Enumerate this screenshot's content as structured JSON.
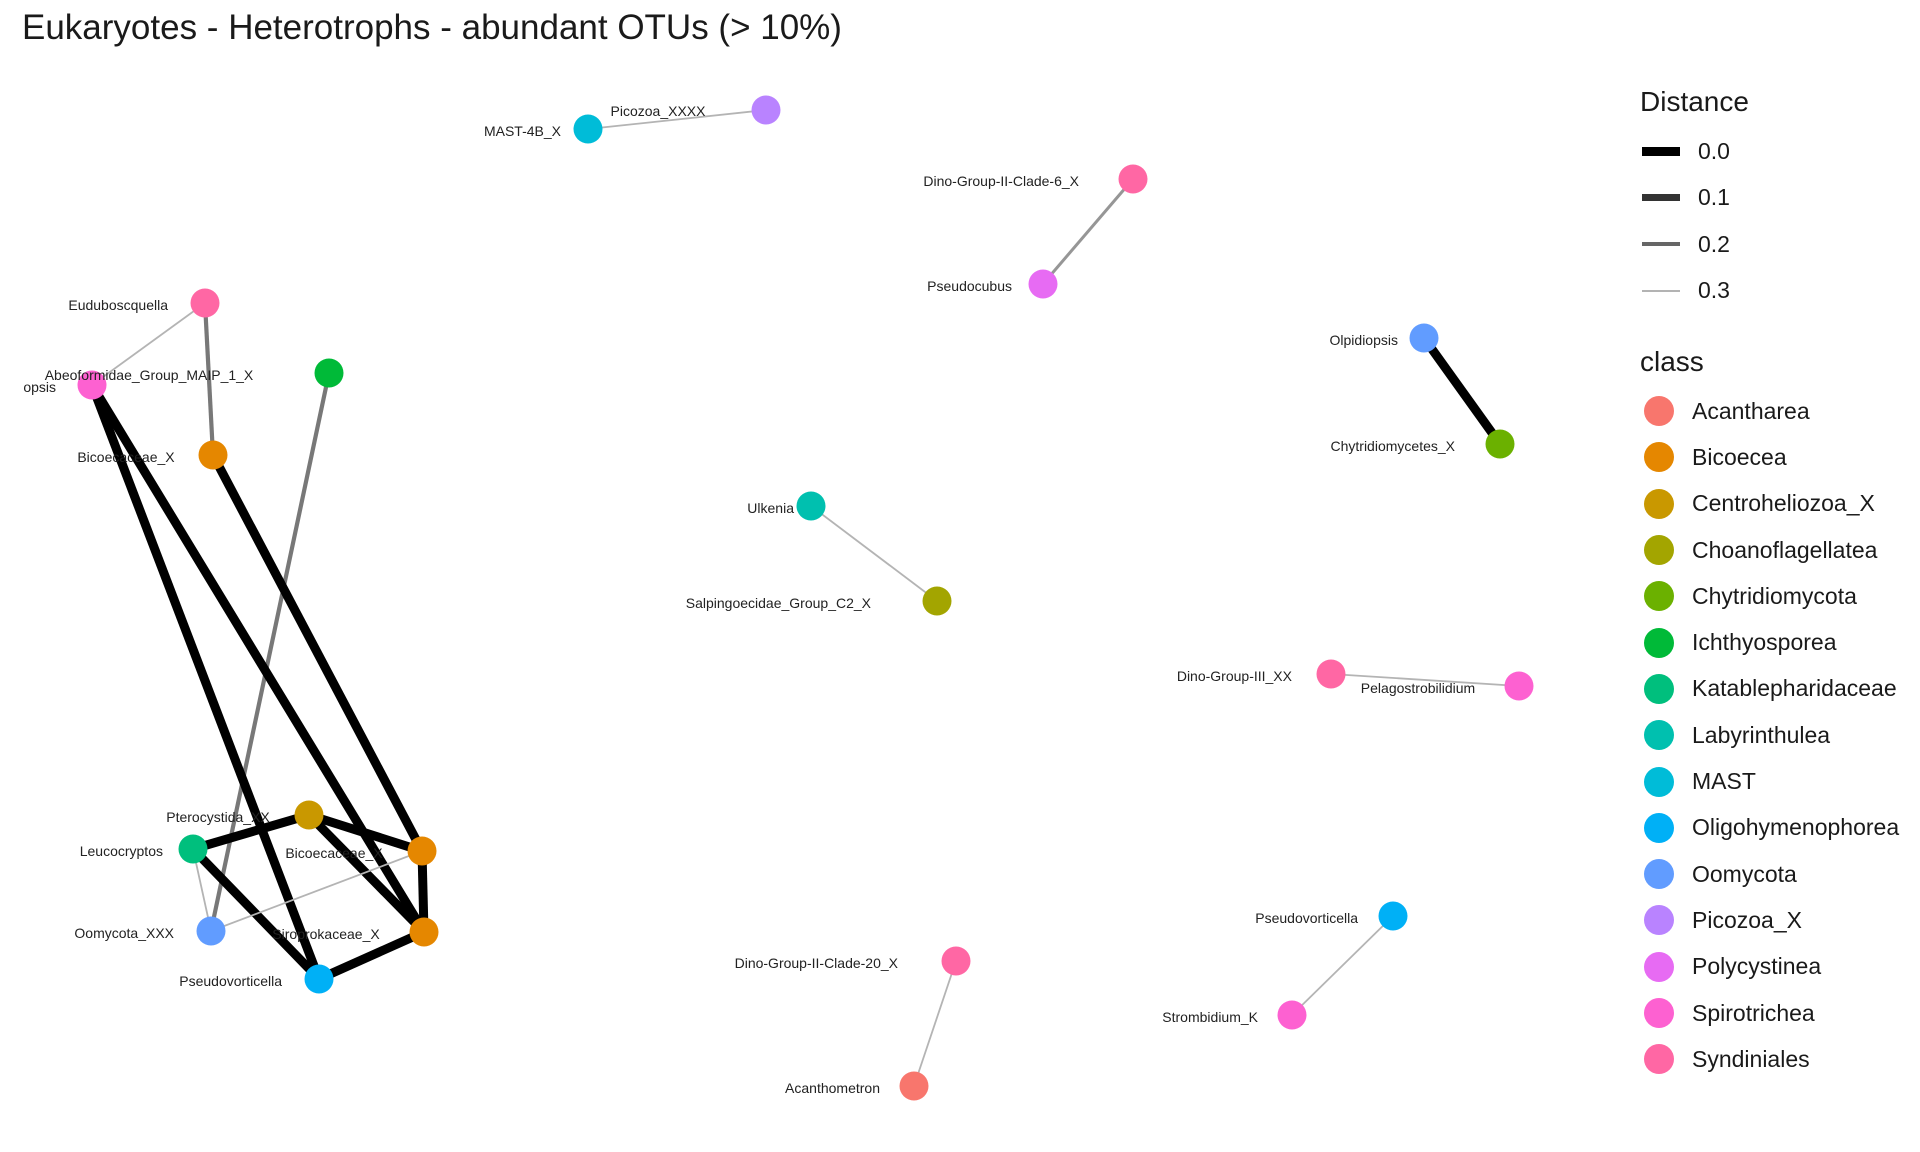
{
  "title": "Eukaryotes - Heterotrophs - abundant OTUs (> 10%)",
  "legend": {
    "distance_title": "Distance",
    "distance_items": [
      {
        "label": "0.0",
        "value": 0.0,
        "color": "#000000"
      },
      {
        "label": "0.1",
        "value": 0.1,
        "color": "#333333"
      },
      {
        "label": "0.2",
        "value": 0.2,
        "color": "#666666"
      },
      {
        "label": "0.3",
        "value": 0.3,
        "color": "#b3b3b3"
      }
    ],
    "class_title": "class",
    "classes": [
      {
        "name": "Acantharea",
        "color": "#F8766D"
      },
      {
        "name": "Bicoecea",
        "color": "#E58700"
      },
      {
        "name": "Centroheliozoa_X",
        "color": "#C99800"
      },
      {
        "name": "Choanoflagellatea",
        "color": "#A3A500"
      },
      {
        "name": "Chytridiomycota",
        "color": "#6BB100"
      },
      {
        "name": "Ichthyosporea",
        "color": "#00BA38"
      },
      {
        "name": "Katablepharidaceae",
        "color": "#00BF7D"
      },
      {
        "name": "Labyrinthulea",
        "color": "#00C0AF"
      },
      {
        "name": "MAST",
        "color": "#00BCD8"
      },
      {
        "name": "Oligohymenophorea",
        "color": "#00B0F6"
      },
      {
        "name": "Oomycota",
        "color": "#619CFF"
      },
      {
        "name": "Picozoa_X",
        "color": "#B983FF"
      },
      {
        "name": "Polycystinea",
        "color": "#E76BF3"
      },
      {
        "name": "Spirotrichea",
        "color": "#FD61D1"
      },
      {
        "name": "Syndiniales",
        "color": "#FF67A4"
      }
    ]
  },
  "network": {
    "nodes": [
      {
        "id": "n_picozoa",
        "label": "Picozoa_XXXX",
        "class": "Picozoa_X"
      },
      {
        "id": "n_mast4b",
        "label": "MAST-4B_X",
        "class": "MAST"
      },
      {
        "id": "n_dino6",
        "label": "Dino-Group-II-Clade-6_X",
        "class": "Syndiniales"
      },
      {
        "id": "n_pseudocubus",
        "label": "Pseudocubus",
        "class": "Polycystinea"
      },
      {
        "id": "n_olpidiopsis",
        "label": "Olpidiopsis",
        "class": "Oomycota"
      },
      {
        "id": "n_chytrid",
        "label": "Chytridiomycetes_X",
        "class": "Chytridiomycota"
      },
      {
        "id": "n_ulkenia",
        "label": "Ulkenia",
        "class": "Labyrinthulea"
      },
      {
        "id": "n_salping",
        "label": "Salpingoecidae_Group_C2_X",
        "class": "Choanoflagellatea"
      },
      {
        "id": "n_dino3",
        "label": "Dino-Group-III_XX",
        "class": "Syndiniales"
      },
      {
        "id": "n_pelago",
        "label": "Pelagostrobilidium",
        "class": "Spirotrichea"
      },
      {
        "id": "n_pseudov2",
        "label": "Pseudovorticella",
        "class": "Oligohymenophorea"
      },
      {
        "id": "n_strombidium",
        "label": "Strombidium_K",
        "class": "Spirotrichea"
      },
      {
        "id": "n_dino20",
        "label": "Dino-Group-II-Clade-20_X",
        "class": "Syndiniales"
      },
      {
        "id": "n_acanthometron",
        "label": "Acanthometron",
        "class": "Acantharea"
      },
      {
        "id": "n_euduboscquella",
        "label": "Euduboscquella",
        "class": "Syndiniales"
      },
      {
        "id": "n_abeo",
        "label": "Abeoformidae_Group_MAIP_1_X",
        "class": "Ichthyosporea"
      },
      {
        "id": "n_opsis",
        "label": "opsis",
        "class": "Spirotrichea"
      },
      {
        "id": "n_bico1",
        "label": "Bicoecaceae_X",
        "class": "Bicoecea"
      },
      {
        "id": "n_ptero",
        "label": "Pterocystida_XX",
        "class": "Centroheliozoa_X"
      },
      {
        "id": "n_leuco",
        "label": "Leucocryptos",
        "class": "Katablepharidaceae"
      },
      {
        "id": "n_bico2",
        "label": "Bicoecaceae_X",
        "class": "Bicoecea"
      },
      {
        "id": "n_oomy",
        "label": "Oomycota_XXX",
        "class": "Oomycota"
      },
      {
        "id": "n_siro",
        "label": "Siroprokaceae_X",
        "class": "Bicoecea"
      },
      {
        "id": "n_pseudov1",
        "label": "Pseudovorticella",
        "class": "Oligohymenophorea"
      }
    ],
    "edges": [
      {
        "source": "n_mast4b",
        "target": "n_picozoa",
        "distance": 0.3
      },
      {
        "source": "n_dino6",
        "target": "n_pseudocubus",
        "distance": 0.25
      },
      {
        "source": "n_olpidiopsis",
        "target": "n_chytrid",
        "distance": 0.0
      },
      {
        "source": "n_ulkenia",
        "target": "n_salping",
        "distance": 0.3
      },
      {
        "source": "n_dino3",
        "target": "n_pelago",
        "distance": 0.3
      },
      {
        "source": "n_pseudov2",
        "target": "n_strombidium",
        "distance": 0.3
      },
      {
        "source": "n_dino20",
        "target": "n_acanthometron",
        "distance": 0.3
      },
      {
        "source": "n_euduboscquella",
        "target": "n_opsis",
        "distance": 0.3
      },
      {
        "source": "n_euduboscquella",
        "target": "n_bico1",
        "distance": 0.2
      },
      {
        "source": "n_abeo",
        "target": "n_oomy",
        "distance": 0.2
      },
      {
        "source": "n_opsis",
        "target": "n_siro",
        "distance": 0.0
      },
      {
        "source": "n_opsis",
        "target": "n_pseudov1",
        "distance": 0.0
      },
      {
        "source": "n_bico1",
        "target": "n_bico2",
        "distance": 0.0
      },
      {
        "source": "n_ptero",
        "target": "n_leuco",
        "distance": 0.0
      },
      {
        "source": "n_ptero",
        "target": "n_bico2",
        "distance": 0.0
      },
      {
        "source": "n_ptero",
        "target": "n_siro",
        "distance": 0.0
      },
      {
        "source": "n_leuco",
        "target": "n_pseudov1",
        "distance": 0.0
      },
      {
        "source": "n_leuco",
        "target": "n_oomy",
        "distance": 0.3
      },
      {
        "source": "n_bico2",
        "target": "n_siro",
        "distance": 0.0
      },
      {
        "source": "n_bico2",
        "target": "n_oomy",
        "distance": 0.3
      },
      {
        "source": "n_siro",
        "target": "n_pseudov1",
        "distance": 0.0
      }
    ]
  }
}
